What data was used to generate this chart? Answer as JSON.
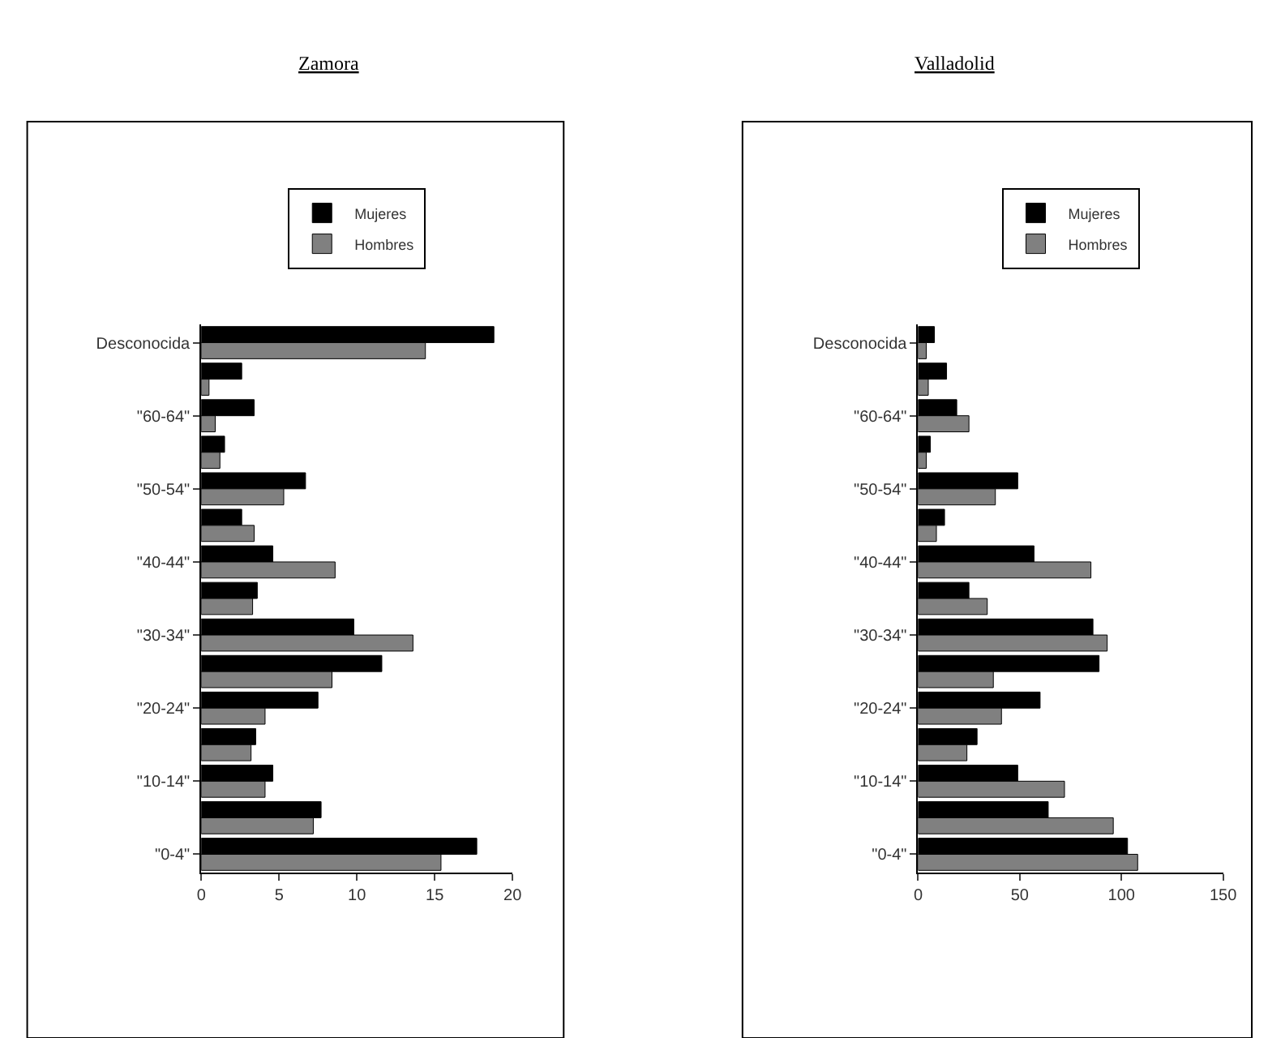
{
  "chart_data": [
    {
      "type": "bar",
      "orientation": "horizontal",
      "title": "Zamora",
      "categories": [
        "Desconocida",
        null,
        "\"60-64\"",
        null,
        "\"50-54\"",
        null,
        "\"40-44\"",
        null,
        "\"30-34\"",
        null,
        "\"20-24\"",
        null,
        "\"10-14\"",
        null,
        "\"0-4\""
      ],
      "series": [
        {
          "name": "Mujeres",
          "color": "#000000",
          "values": [
            18.8,
            2.6,
            3.4,
            1.5,
            6.7,
            2.6,
            4.6,
            3.6,
            9.8,
            11.6,
            7.5,
            3.5,
            4.6,
            7.7,
            17.7
          ]
        },
        {
          "name": "Hombres",
          "color": "#808080",
          "values": [
            14.4,
            0.5,
            0.9,
            1.2,
            5.3,
            3.4,
            8.6,
            3.3,
            13.6,
            8.4,
            4.1,
            3.2,
            4.1,
            7.2,
            15.4
          ]
        }
      ],
      "xlim": [
        0,
        20
      ],
      "xticks": [
        0,
        5,
        10,
        15,
        20
      ],
      "legend": "top"
    },
    {
      "type": "bar",
      "orientation": "horizontal",
      "title": "Valladolid",
      "categories": [
        "Desconocida",
        null,
        "\"60-64\"",
        null,
        "\"50-54\"",
        null,
        "\"40-44\"",
        null,
        "\"30-34\"",
        null,
        "\"20-24\"",
        null,
        "\"10-14\"",
        null,
        "\"0-4\""
      ],
      "series": [
        {
          "name": "Mujeres",
          "color": "#000000",
          "values": [
            8,
            14,
            19,
            6,
            49,
            13,
            57,
            25,
            86,
            89,
            60,
            29,
            49,
            64,
            103
          ]
        },
        {
          "name": "Hombres",
          "color": "#808080",
          "values": [
            4,
            5,
            25,
            4,
            38,
            9,
            85,
            34,
            93,
            37,
            41,
            24,
            72,
            96,
            108
          ]
        }
      ],
      "xlim": [
        0,
        150
      ],
      "xticks": [
        0,
        50,
        100,
        150
      ],
      "legend": "top"
    }
  ]
}
